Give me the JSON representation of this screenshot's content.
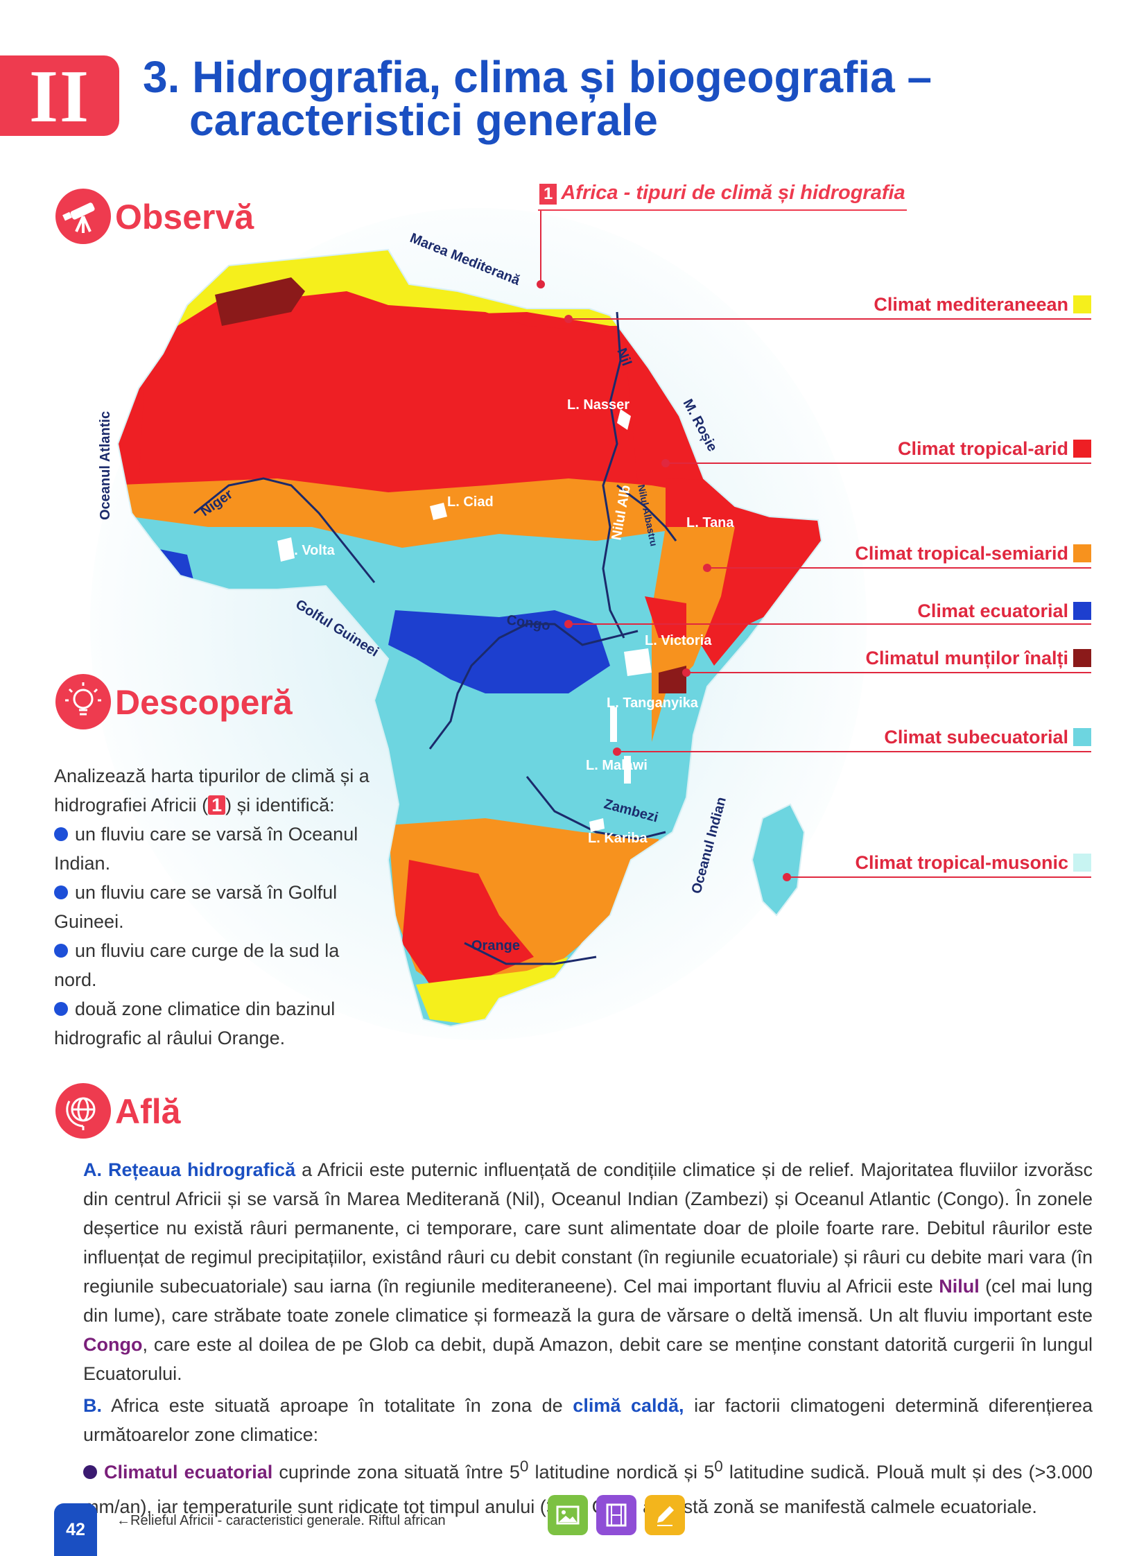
{
  "chapter": {
    "badge": "II",
    "title_line1": "3. Hidrografia, clima și biogeografia –",
    "title_line2": "caracteristici generale"
  },
  "sections": {
    "observe": "Observă",
    "discover": "Descoperă",
    "learn": "Află"
  },
  "map": {
    "caption_number": "1",
    "caption": "Africa - tipuri de climă și hidrografia",
    "legend": [
      {
        "label": "Climat mediteraneean",
        "color": "#f5ef1c"
      },
      {
        "label": "Climat tropical-arid",
        "color": "#ee1f24"
      },
      {
        "label": "Climat tropical-semiarid",
        "color": "#f7921e"
      },
      {
        "label": "Climat ecuatorial",
        "color": "#1d3fcf"
      },
      {
        "label": "Climatul munților înalți",
        "color": "#8b1a1a"
      },
      {
        "label": "Climat subecuatorial",
        "color": "#6dd5e0"
      },
      {
        "label": "Climat tropical-musonic",
        "color": "#c8f4f2"
      }
    ],
    "labels": {
      "mediterranean_sea": "Marea Mediterană",
      "atlantic_ocean": "Oceanul Atlantic",
      "red_sea": "M. Roșie",
      "indian_ocean": "Oceanul Indian",
      "gulf_of_guinea": "Golful Guineei",
      "nile": "Nil",
      "lake_nasser": "L. Nasser",
      "niger": "Niger",
      "lake_chad": "L. Ciad",
      "white_nile": "Nilul Alb",
      "blue_nile": "Nilul Albastru",
      "lake_tana": "L. Tana",
      "lake_volta": "L. Volta",
      "congo": "Congo",
      "lake_victoria": "L. Victoria",
      "lake_tanganyika": "L. Tanganyika",
      "lake_malawi": "L. Malawi",
      "zambezi": "Zambezi",
      "lake_kariba": "L. Kariba",
      "orange": "Orange"
    }
  },
  "discover": {
    "intro_before": "Analizează harta tipurilor de climă și a hidrografiei Africii (",
    "intro_ref": "1",
    "intro_after": ") și identifică:",
    "items": [
      "un fluviu care se varsă în Oceanul Indian.",
      "un fluviu care se varsă în Golful Guineei.",
      "un fluviu care curge de la sud la nord.",
      "două zone climatice din bazinul hidrografic al râului Orange."
    ]
  },
  "learn": {
    "a_label": "A.",
    "a_keyword": "Rețeaua hidrografică",
    "a_text1": " a Africii este puternic influențată de condițiile climatice și de relief. Majoritatea fluviilor izvorăsc din centrul Africii și se varsă în Marea Mediterană (Nil), Oceanul Indian (Zambezi) și Oceanul Atlantic (Congo). În zonele deșertice nu există râuri permanente, ci temporare, care sunt alimentate doar de ploile foarte rare. Debitul râurilor este influențat de regimul precipitațiilor, existând râuri cu debit constant (în regiunile ecuatoriale) și râuri cu debite mari vara (în regiunile subecuatoriale) sau iarna (în regiunile mediteraneene). Cel mai important fluviu al Africii este ",
    "a_nile": "Nilul",
    "a_text2": " (cel mai lung din lume), care străbate toate zonele climatice și formează la gura de vărsare o deltă imensă. Un alt fluviu important este ",
    "a_congo": "Congo",
    "a_text3": ", care este al doilea de pe Glob ca debit, după Amazon, debit care se menține constant datorită curgerii în lungul Ecuatorului.",
    "b_label": "B.",
    "b_text1": " Africa este situată aproape în totalitate în zona de ",
    "b_keyword": "climă caldă,",
    "b_text2": " iar factorii climatogeni determină diferențierea următoarelor zone climatice:",
    "c_keyword": "Climatul ecuatorial",
    "c_text1": " cuprinde zona situată între 5",
    "c_sup1": "0",
    "c_text2": " latitudine nordică și 5",
    "c_sup2": "0",
    "c_text3": " latitudine sudică. Plouă mult și des (>3.000 mm/an), iar temperaturile sunt ridicate tot timpul anului (>25",
    "c_sup3": "0",
    "c_text4": " C). În această zonă se manifestă calmele ecuatoriale."
  },
  "footer": {
    "page_number": "42",
    "link_text": "Relieful Africii - caracteristici generale. Riftul african",
    "buttons": [
      {
        "icon": "image-icon",
        "color": "#7cc142"
      },
      {
        "icon": "film-icon",
        "color": "#8f4ed6"
      },
      {
        "icon": "pencil-icon",
        "color": "#f3b51c"
      }
    ]
  }
}
